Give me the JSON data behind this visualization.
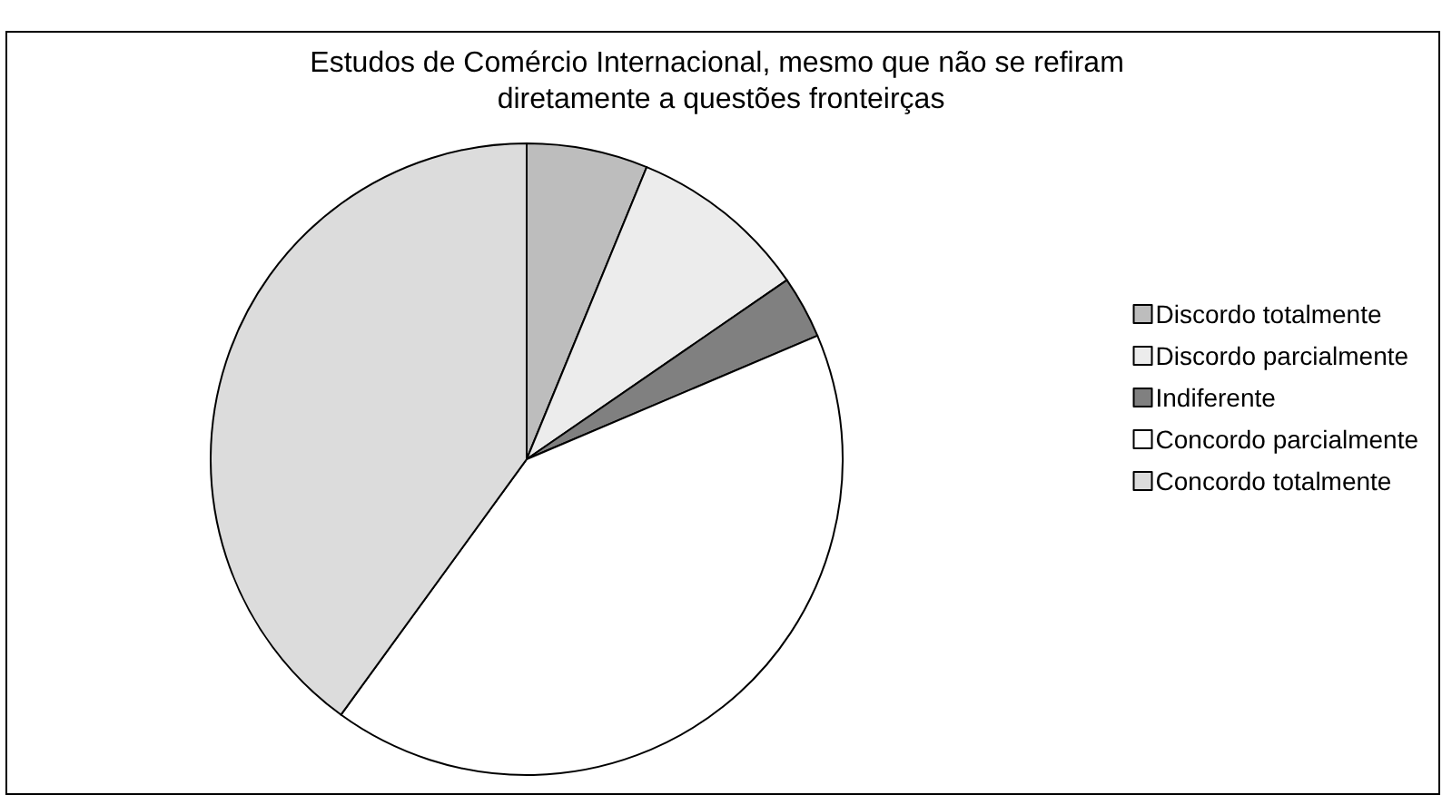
{
  "chart_data": {
    "type": "pie",
    "title": "Estudos de Comércio Internacional, mesmo que não se refiram diretamente a questões fronteirças",
    "categories": [
      "Discordo totalmente",
      "Discordo parcialmente",
      "Indiferente",
      "Concordo parcialmente",
      "Concordo totalmente"
    ],
    "values": [
      6.2,
      9.2,
      3.2,
      41.4,
      40
    ],
    "colors": [
      "#bdbdbd",
      "#ececec",
      "#808080",
      "#ffffff",
      "#dcdcdc"
    ],
    "legend": "right"
  }
}
